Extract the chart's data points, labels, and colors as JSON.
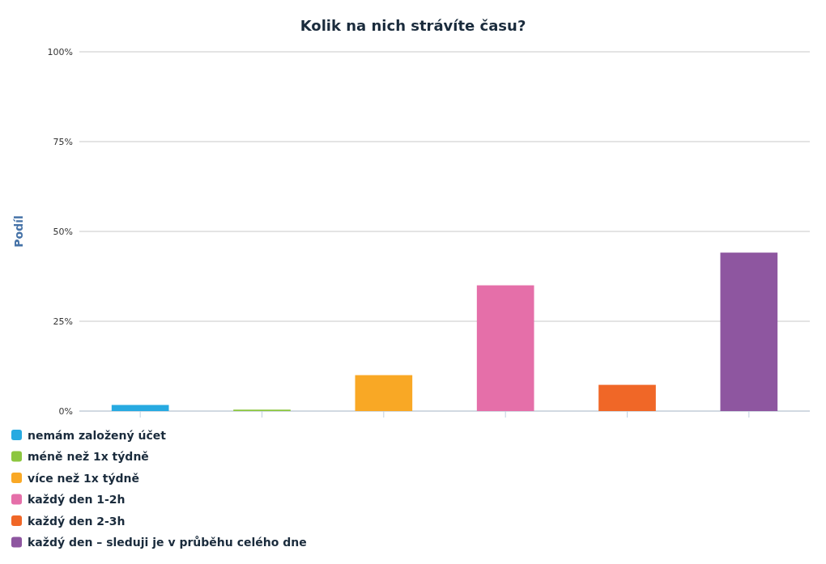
{
  "chart_data": {
    "type": "bar",
    "title": "Kolik na nich strávíte času?",
    "ylabel": "Podíl",
    "categories": [
      null,
      null,
      null,
      null,
      null,
      null
    ],
    "series": [
      {
        "name": "nemám založený účet",
        "color": "#27aae1",
        "values": [
          1.7,
          null,
          null,
          null,
          null,
          null
        ]
      },
      {
        "name": "méně než 1x týdně",
        "color": "#8cc63f",
        "values": [
          null,
          0.4,
          null,
          null,
          null,
          null
        ]
      },
      {
        "name": "více než 1x týdně",
        "color": "#f9a825",
        "values": [
          null,
          null,
          10,
          null,
          null,
          null
        ]
      },
      {
        "name": "každý den 1-2h",
        "color": "#e56fa9",
        "values": [
          null,
          null,
          null,
          35,
          null,
          null
        ]
      },
      {
        "name": "každý den 2-3h",
        "color": "#f06727",
        "values": [
          null,
          null,
          null,
          null,
          7.3,
          null
        ]
      },
      {
        "name": "každý den – sleduji je v průběhu celého dne",
        "color": "#8e56a0",
        "values": [
          null,
          null,
          null,
          null,
          null,
          44.1
        ]
      }
    ],
    "ylim": [
      0,
      100
    ],
    "yticks": [
      {
        "value": 0,
        "label": "0%"
      },
      {
        "value": 25,
        "label": "25%"
      },
      {
        "value": 50,
        "label": "50%"
      },
      {
        "value": 75,
        "label": "75%"
      },
      {
        "value": 100,
        "label": "100%"
      }
    ],
    "grid": "y",
    "legend": "bottom left"
  }
}
